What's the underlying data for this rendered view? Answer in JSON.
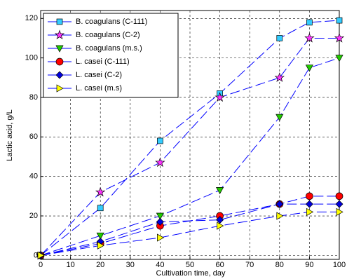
{
  "chart_data": {
    "type": "line",
    "x_label": "Cultivation time, day",
    "y_label": "Lactic acid, g/L",
    "x": [
      0,
      20,
      40,
      60,
      80,
      90,
      100
    ],
    "line_color": "#0000ff",
    "series": [
      {
        "name": "B. coagulans (C-111)",
        "color": "#33ccff",
        "marker": "square",
        "values": [
          0,
          24,
          58,
          82,
          110,
          118,
          119
        ]
      },
      {
        "name": "B. coagulans (C-2)",
        "color": "#ff33ff",
        "marker": "star",
        "values": [
          0,
          32,
          47,
          80,
          90,
          110,
          110
        ]
      },
      {
        "name": "B. coagulans (m.s.)",
        "color": "#22cc00",
        "marker": "triangle-down",
        "values": [
          0,
          10,
          20,
          33,
          70,
          95,
          100
        ]
      },
      {
        "name": "L. casei (C-111)",
        "color": "#ff0000",
        "marker": "circle",
        "values": [
          0,
          6,
          15,
          20,
          26,
          30,
          30
        ]
      },
      {
        "name": "L. casei (C-2)",
        "color": "#0000dd",
        "marker": "diamond",
        "values": [
          0,
          7,
          17,
          18,
          26,
          26,
          26
        ]
      },
      {
        "name": "L. casei (m.s)",
        "color": "#ffff00",
        "marker": "triangle-right",
        "values": [
          0,
          5,
          9,
          15,
          20,
          22,
          22
        ]
      }
    ],
    "xlim": [
      0,
      100
    ],
    "xticks": [
      0,
      10,
      20,
      30,
      40,
      50,
      60,
      70,
      80,
      90,
      100
    ],
    "ylim": [
      -2,
      124
    ],
    "yticks": [
      0,
      20,
      40,
      60,
      80,
      100,
      120
    ],
    "grid": true,
    "legend": "upper-left"
  }
}
